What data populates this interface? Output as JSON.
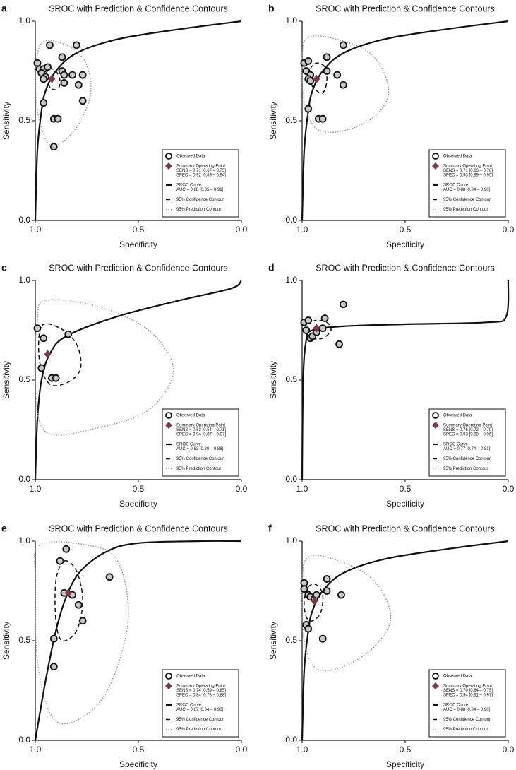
{
  "chart_data": [
    {
      "type": "sroc",
      "panel": "a",
      "title": "SROC with Prediction & Confidence Contours",
      "x_label": "Specificity",
      "y_label": "Sensitivity",
      "xlim": [
        1,
        0
      ],
      "ylim": [
        0,
        1
      ],
      "xticks": [
        {
          "value": 1,
          "label": "1.0"
        },
        {
          "value": 0.5,
          "label": "0.5"
        },
        {
          "value": 0,
          "label": "0.0"
        }
      ],
      "yticks": [
        {
          "value": 0,
          "label": "0.0"
        },
        {
          "value": 0.5,
          "label": "0.5"
        },
        {
          "value": 1,
          "label": "1.0"
        }
      ],
      "series": [
        {
          "name": "Observed Data",
          "marker": "circle",
          "color": "#c8c8c8",
          "x": [
            0.99,
            0.98,
            0.96,
            0.94,
            0.97,
            0.95,
            0.96,
            0.93,
            0.8,
            0.87,
            0.87,
            0.86,
            0.86,
            0.82,
            0.77,
            0.79,
            0.77,
            0.96,
            0.91,
            0.89,
            0.91
          ],
          "values": [
            0.79,
            0.76,
            0.76,
            0.77,
            0.74,
            0.72,
            0.71,
            0.88,
            0.88,
            0.82,
            0.75,
            0.73,
            0.69,
            0.73,
            0.73,
            0.68,
            0.6,
            0.59,
            0.51,
            0.51,
            0.37
          ]
        },
        {
          "name": "Summary Operating Point",
          "marker": "diamond",
          "color": "#7b3b42",
          "x": [
            0.92
          ],
          "values": [
            0.71
          ],
          "details": [
            "SENS = 0.71 [0.67 – 0.75]",
            "SPEC = 0.92 [0.89 – 0.94]"
          ]
        },
        {
          "name": "SROC Curve",
          "line": "solid",
          "color": "#111111",
          "x": [
            1,
            0.99,
            0.97,
            0.95,
            0.9,
            0.8,
            0.6,
            0.3,
            0
          ],
          "values": [
            0,
            0.35,
            0.55,
            0.65,
            0.75,
            0.84,
            0.91,
            0.96,
            1
          ],
          "details": [
            "AUC = 0.88 [0.85 – 0.91]"
          ]
        },
        {
          "name": "95% Confidence Contour",
          "line": "dashed",
          "closed": true,
          "color": "#111111",
          "x": [
            0.95,
            0.93,
            0.9,
            0.88,
            0.89,
            0.92,
            0.94
          ],
          "values": [
            0.73,
            0.76,
            0.75,
            0.7,
            0.66,
            0.66,
            0.69
          ]
        },
        {
          "name": "95% Prediction Contour",
          "line": "dotted",
          "closed": true,
          "color": "#999999",
          "x": [
            0.97,
            0.85,
            0.76,
            0.73,
            0.78,
            0.86,
            0.93,
            0.98,
            1
          ],
          "values": [
            0.89,
            0.88,
            0.8,
            0.65,
            0.5,
            0.4,
            0.38,
            0.5,
            0.7
          ]
        }
      ]
    },
    {
      "type": "sroc",
      "panel": "b",
      "title": "SROC with Prediction & Confidence Contours",
      "x_label": "Specificity",
      "y_label": "Sensitivity",
      "xlim": [
        1,
        0
      ],
      "ylim": [
        0,
        1
      ],
      "xticks": [
        {
          "value": 1,
          "label": "1.0"
        },
        {
          "value": 0.5,
          "label": "0.5"
        },
        {
          "value": 0,
          "label": "0.0"
        }
      ],
      "yticks": [
        {
          "value": 0,
          "label": "0.0"
        },
        {
          "value": 0.5,
          "label": "0.5"
        },
        {
          "value": 1,
          "label": "1.0"
        }
      ],
      "series": [
        {
          "name": "Observed Data",
          "marker": "circle",
          "color": "#c8c8c8",
          "x": [
            0.99,
            0.98,
            0.97,
            0.96,
            0.97,
            0.96,
            0.97,
            0.92,
            0.9,
            0.88,
            0.8,
            0.83,
            0.8,
            0.88
          ],
          "values": [
            0.79,
            0.75,
            0.8,
            0.73,
            0.71,
            0.7,
            0.56,
            0.51,
            0.51,
            0.82,
            0.88,
            0.73,
            0.68,
            0.75
          ]
        },
        {
          "name": "Summary Operating Point",
          "marker": "diamond",
          "color": "#7b3b42",
          "x": [
            0.93
          ],
          "values": [
            0.71
          ],
          "details": [
            "SENS = 0.71 [0.66 – 0.76]",
            "SPEC = 0.93 [0.89 – 0.95]"
          ]
        },
        {
          "name": "SROC Curve",
          "line": "solid",
          "color": "#111111",
          "x": [
            1,
            0.99,
            0.97,
            0.95,
            0.9,
            0.8,
            0.6,
            0.3,
            0
          ],
          "values": [
            0,
            0.35,
            0.55,
            0.65,
            0.75,
            0.84,
            0.91,
            0.96,
            1
          ],
          "details": [
            "AUC = 0.88 [0.84 – 0.90]"
          ]
        },
        {
          "name": "95% Confidence Contour",
          "line": "dashed",
          "closed": true,
          "color": "#111111",
          "x": [
            0.96,
            0.93,
            0.89,
            0.88,
            0.9,
            0.94,
            0.96
          ],
          "values": [
            0.76,
            0.79,
            0.77,
            0.7,
            0.64,
            0.66,
            0.7
          ]
        },
        {
          "name": "95% Prediction Contour",
          "line": "dotted",
          "closed": true,
          "color": "#999999",
          "x": [
            0.97,
            0.8,
            0.65,
            0.58,
            0.65,
            0.8,
            0.93,
            0.99,
            1
          ],
          "values": [
            0.92,
            0.9,
            0.82,
            0.65,
            0.52,
            0.45,
            0.46,
            0.6,
            0.8
          ]
        }
      ]
    },
    {
      "type": "sroc",
      "panel": "c",
      "title": "SROC with Prediction & Confidence Contours",
      "x_label": "Specificity",
      "y_label": "Sensitivity",
      "xlim": [
        1,
        0
      ],
      "ylim": [
        0,
        1
      ],
      "xticks": [
        {
          "value": 1,
          "label": "1.0"
        },
        {
          "value": 0.5,
          "label": "0.5"
        },
        {
          "value": 0,
          "label": "0.0"
        }
      ],
      "yticks": [
        {
          "value": 0,
          "label": "0.0"
        },
        {
          "value": 0.5,
          "label": "0.5"
        },
        {
          "value": 1,
          "label": "1.0"
        }
      ],
      "series": [
        {
          "name": "Observed Data",
          "marker": "circle",
          "color": "#c8c8c8",
          "x": [
            0.99,
            0.96,
            0.97,
            0.92,
            0.9,
            0.84
          ],
          "values": [
            0.76,
            0.71,
            0.56,
            0.51,
            0.51,
            0.73
          ]
        },
        {
          "name": "Summary Operating Point",
          "marker": "diamond",
          "color": "#7b3b42",
          "x": [
            0.94
          ],
          "values": [
            0.63
          ],
          "details": [
            "SENS = 0.63 [0.54 – 0.71]",
            "SPEC = 0.94 [0.87 – 0.97]"
          ]
        },
        {
          "name": "SROC Curve",
          "line": "solid",
          "color": "#111111",
          "x": [
            1,
            0.99,
            0.97,
            0.93,
            0.85,
            0.6,
            0.3,
            0.05,
            0
          ],
          "values": [
            0,
            0.3,
            0.5,
            0.63,
            0.72,
            0.82,
            0.9,
            0.96,
            1
          ],
          "details": [
            "AUC = 0.83 [0.80 – 0.86]"
          ]
        },
        {
          "name": "95% Confidence Contour",
          "line": "dashed",
          "closed": true,
          "color": "#111111",
          "x": [
            0.97,
            0.88,
            0.8,
            0.78,
            0.84,
            0.93,
            0.98
          ],
          "values": [
            0.77,
            0.76,
            0.68,
            0.56,
            0.49,
            0.48,
            0.6
          ]
        },
        {
          "name": "95% Prediction Contour",
          "line": "dotted",
          "closed": true,
          "color": "#999999",
          "x": [
            0.95,
            0.7,
            0.45,
            0.33,
            0.45,
            0.7,
            0.95,
            1,
            0.99
          ],
          "values": [
            0.9,
            0.87,
            0.75,
            0.55,
            0.35,
            0.26,
            0.24,
            0.5,
            0.8
          ]
        }
      ]
    },
    {
      "type": "sroc",
      "panel": "d",
      "title": "SROC with Prediction & Confidence Contours",
      "x_label": "Specificity",
      "y_label": "Sensitivity",
      "xlim": [
        1,
        0
      ],
      "ylim": [
        0,
        1
      ],
      "xticks": [
        {
          "value": 1,
          "label": "1.0"
        },
        {
          "value": 0.5,
          "label": "0.5"
        },
        {
          "value": 0,
          "label": "0.0"
        }
      ],
      "yticks": [
        {
          "value": 0,
          "label": "0.0"
        },
        {
          "value": 0.5,
          "label": "0.5"
        },
        {
          "value": 1,
          "label": "1.0"
        }
      ],
      "series": [
        {
          "name": "Observed Data",
          "marker": "circle",
          "color": "#c8c8c8",
          "x": [
            0.99,
            0.98,
            0.97,
            0.96,
            0.95,
            0.93,
            0.9,
            0.89,
            0.8,
            0.82
          ],
          "values": [
            0.79,
            0.75,
            0.8,
            0.71,
            0.72,
            0.74,
            0.76,
            0.81,
            0.88,
            0.68
          ]
        },
        {
          "name": "Summary Operating Point",
          "marker": "diamond",
          "color": "#7b3b42",
          "x": [
            0.93
          ],
          "values": [
            0.76
          ],
          "details": [
            "SENS = 0.76 [0.72 – 0.79]",
            "SPEC = 0.93 [0.88 – 0.96]"
          ]
        },
        {
          "name": "SROC Curve",
          "line": "solid",
          "color": "#111111",
          "x": [
            1,
            0.995,
            0.98,
            0.95,
            0.8,
            0.5,
            0.1,
            0.01,
            0
          ],
          "values": [
            0,
            0.5,
            0.7,
            0.75,
            0.77,
            0.78,
            0.79,
            0.82,
            1
          ],
          "details": [
            "AUC = 0.77 [0.74 – 0.81]"
          ]
        },
        {
          "name": "95% Confidence Contour",
          "line": "dashed",
          "closed": true,
          "color": "#111111",
          "x": [
            0.98,
            0.93,
            0.88,
            0.86,
            0.9,
            0.96,
            0.99
          ],
          "values": [
            0.78,
            0.8,
            0.79,
            0.75,
            0.71,
            0.71,
            0.74
          ]
        },
        {
          "name": "95% Prediction Contour",
          "line": "dotted",
          "closed": true,
          "color": "#999999",
          "x": [],
          "values": []
        }
      ]
    },
    {
      "type": "sroc",
      "panel": "e",
      "title": "SROC with Prediction & Confidence Contours",
      "x_label": "Specificity",
      "y_label": "Sensitivity",
      "xlim": [
        1,
        0
      ],
      "ylim": [
        0,
        1
      ],
      "xticks": [
        {
          "value": 1,
          "label": "1.0"
        },
        {
          "value": 0.5,
          "label": "0.5"
        },
        {
          "value": 0,
          "label": "0.0"
        }
      ],
      "yticks": [
        {
          "value": 0,
          "label": "0.0"
        },
        {
          "value": 0.5,
          "label": "0.5"
        },
        {
          "value": 1,
          "label": "1.0"
        }
      ],
      "series": [
        {
          "name": "Observed Data",
          "marker": "circle",
          "color": "#c8c8c8",
          "x": [
            0.85,
            0.88,
            0.86,
            0.82,
            0.79,
            0.77,
            0.91,
            0.91,
            0.64
          ],
          "values": [
            0.96,
            0.9,
            0.74,
            0.73,
            0.68,
            0.6,
            0.51,
            0.37,
            0.82
          ]
        },
        {
          "name": "Summary Operating Point",
          "marker": "diamond",
          "color": "#7b3b42",
          "x": [
            0.84
          ],
          "values": [
            0.74
          ],
          "details": [
            "SENS = 0.74 [0.59 – 0.85]",
            "SPEC = 0.84 [0.78 – 0.88]"
          ]
        },
        {
          "name": "SROC Curve",
          "line": "solid",
          "color": "#111111",
          "x": [
            1,
            0.95,
            0.9,
            0.85,
            0.78,
            0.65,
            0.5,
            0.2,
            0
          ],
          "values": [
            0,
            0.3,
            0.55,
            0.72,
            0.85,
            0.95,
            0.99,
            1,
            1
          ],
          "details": [
            "AUC = 0.87 [0.84 – 0.90]"
          ]
        },
        {
          "name": "95% Confidence Contour",
          "line": "dashed",
          "closed": true,
          "color": "#111111",
          "x": [
            0.86,
            0.8,
            0.77,
            0.8,
            0.87,
            0.9,
            0.9
          ],
          "values": [
            0.9,
            0.85,
            0.7,
            0.55,
            0.5,
            0.6,
            0.8
          ]
        },
        {
          "name": "95% Prediction Contour",
          "line": "dotted",
          "closed": true,
          "color": "#999999",
          "x": [
            0.98,
            0.75,
            0.6,
            0.55,
            0.65,
            0.8,
            0.92,
            0.99,
            1
          ],
          "values": [
            0.98,
            0.98,
            0.9,
            0.6,
            0.25,
            0.1,
            0.12,
            0.4,
            0.8
          ]
        }
      ]
    },
    {
      "type": "sroc",
      "panel": "f",
      "title": "SROC with Prediction & Confidence Contours",
      "x_label": "Specificity",
      "y_label": "Sensitivity",
      "xlim": [
        1,
        0
      ],
      "ylim": [
        0,
        1
      ],
      "xticks": [
        {
          "value": 1,
          "label": "1.0"
        },
        {
          "value": 0.5,
          "label": "0.5"
        },
        {
          "value": 0,
          "label": "0.0"
        }
      ],
      "yticks": [
        {
          "value": 0,
          "label": "0.0"
        },
        {
          "value": 0.5,
          "label": "0.5"
        },
        {
          "value": 1,
          "label": "1.0"
        }
      ],
      "series": [
        {
          "name": "Observed Data",
          "marker": "circle",
          "color": "#c8c8c8",
          "x": [
            0.99,
            0.99,
            0.97,
            0.98,
            0.97,
            0.96,
            0.94,
            0.93,
            0.9,
            0.88,
            0.88,
            0.81
          ],
          "values": [
            0.79,
            0.76,
            0.73,
            0.58,
            0.56,
            0.72,
            0.71,
            0.73,
            0.51,
            0.81,
            0.75,
            0.73
          ]
        },
        {
          "name": "Summary Operating Point",
          "marker": "diamond",
          "color": "#7b3b42",
          "x": [
            0.94
          ],
          "values": [
            0.7
          ],
          "details": [
            "SENS = 0.70 [0.64 – 0.75]",
            "SPEC = 0.94 [0.91 – 0.97]"
          ]
        },
        {
          "name": "SROC Curve",
          "line": "solid",
          "color": "#111111",
          "x": [
            1,
            0.99,
            0.97,
            0.95,
            0.9,
            0.8,
            0.6,
            0.3,
            0
          ],
          "values": [
            0,
            0.35,
            0.55,
            0.65,
            0.75,
            0.84,
            0.91,
            0.96,
            1
          ],
          "details": [
            "AUC = 0.88 [0.84 – 0.90]"
          ]
        },
        {
          "name": "95% Confidence Contour",
          "line": "dashed",
          "closed": true,
          "color": "#111111",
          "x": [
            0.97,
            0.93,
            0.9,
            0.91,
            0.95,
            0.98,
            0.99
          ],
          "values": [
            0.77,
            0.78,
            0.73,
            0.64,
            0.6,
            0.62,
            0.7
          ]
        },
        {
          "name": "95% Prediction Contour",
          "line": "dotted",
          "closed": true,
          "color": "#999999",
          "x": [
            0.97,
            0.82,
            0.65,
            0.57,
            0.65,
            0.8,
            0.93,
            0.99,
            1
          ],
          "values": [
            0.92,
            0.9,
            0.8,
            0.62,
            0.47,
            0.37,
            0.36,
            0.5,
            0.78
          ]
        }
      ]
    }
  ]
}
